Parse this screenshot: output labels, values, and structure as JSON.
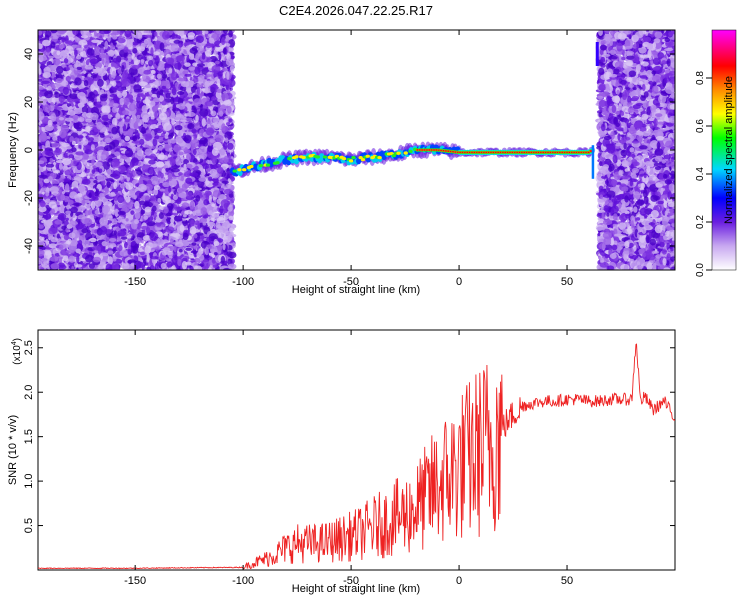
{
  "title": "C2E4.2026.047.22.25.R17",
  "chart_data": [
    {
      "type": "heatmap",
      "xlabel": "Height of straight line (km)",
      "ylabel": "Frequency (Hz)",
      "xlim": [
        -195,
        100
      ],
      "ylim": [
        -50,
        50
      ],
      "xticks": [
        -150,
        -100,
        -50,
        0,
        50
      ],
      "yticks": [
        -40,
        -20,
        0,
        20,
        40
      ],
      "ridge": {
        "x": [
          -105,
          -100,
          -90,
          -80,
          -70,
          -60,
          -50,
          -40,
          -30,
          -20,
          -10,
          0,
          20,
          40,
          60,
          62
        ],
        "frequency": [
          -9,
          -8,
          -6,
          -4,
          -3,
          -3,
          -4,
          -3,
          -2,
          0,
          0,
          -1,
          -1,
          -1,
          -1,
          0
        ]
      },
      "noise_regions": [
        {
          "x_from": -195,
          "x_to": -105
        },
        {
          "x_from": 65,
          "x_to": 100
        }
      ],
      "colorbar": {
        "label": "Normalized spectral amplitude",
        "range": [
          0.0,
          1.0
        ],
        "ticks": [
          0.0,
          0.2,
          0.4,
          0.6,
          0.8
        ],
        "tick_labels": [
          "0.0",
          "0.2",
          "0.4",
          "0.6",
          "0.8"
        ],
        "colors": [
          "#ffffff",
          "#8a2be2",
          "#0000ff",
          "#00ffff",
          "#00ff00",
          "#ffff00",
          "#ff8c00",
          "#ff0000",
          "#ff00ff"
        ]
      }
    },
    {
      "type": "line",
      "xlabel": "Height of straight line (km)",
      "ylabel": "SNR (10 * v/v)",
      "scale_label": "(x10",
      "scale_exponent": "4",
      "scale_suffix": ")",
      "xlim": [
        -195,
        100
      ],
      "ylim": [
        0,
        2.7
      ],
      "xticks": [
        -150,
        -100,
        -50,
        0,
        50
      ],
      "yticks": [
        0.5,
        1.0,
        1.5,
        2.0,
        2.5
      ],
      "ytick_labels": [
        "0.5",
        "1.0",
        "1.5",
        "2.0",
        "2.5"
      ],
      "line_color": "#ee2222",
      "series": [
        {
          "name": "SNR",
          "x": [
            -195,
            -150,
            -100,
            -95,
            -90,
            -85,
            -80,
            -75,
            -70,
            -65,
            -60,
            -55,
            -50,
            -45,
            -40,
            -35,
            -30,
            -25,
            -20,
            -15,
            -10,
            -5,
            0,
            5,
            10,
            15,
            20,
            25,
            30,
            35,
            40,
            45,
            50,
            55,
            60,
            65,
            70,
            75,
            80,
            82,
            84,
            86,
            90,
            95,
            100
          ],
          "y": [
            0.02,
            0.02,
            0.03,
            0.08,
            0.12,
            0.18,
            0.25,
            0.3,
            0.3,
            0.3,
            0.32,
            0.35,
            0.38,
            0.42,
            0.48,
            0.52,
            0.58,
            0.62,
            0.7,
            0.82,
            0.95,
            1.05,
            1.15,
            1.25,
            1.35,
            1.45,
            1.6,
            1.75,
            1.85,
            1.88,
            1.9,
            1.9,
            1.92,
            1.92,
            1.9,
            1.9,
            1.92,
            1.92,
            1.92,
            2.6,
            1.9,
            1.95,
            1.8,
            1.9,
            1.7
          ]
        }
      ]
    }
  ]
}
